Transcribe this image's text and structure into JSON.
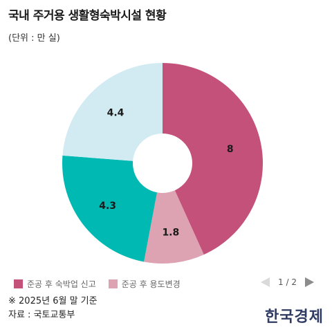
{
  "header": {
    "title": "국내 주거용 생활형숙박시설 현황",
    "unit": "(단위 : 만 실)"
  },
  "chart_data": {
    "type": "pie",
    "donut": true,
    "slices": [
      {
        "label": "준공 후 숙박업 신고",
        "value": 8,
        "color": "#c4517a"
      },
      {
        "label": "",
        "value": 1.8,
        "color": "#dea3b2"
      },
      {
        "label": "",
        "value": 4.3,
        "color": "#00b9b3"
      },
      {
        "label": "",
        "value": 4.4,
        "color": "#d2ebf2"
      }
    ],
    "legend": [
      {
        "label": "준공 후 숙박업 신고",
        "color": "#c4517a"
      },
      {
        "label": "준공 후 용도변경",
        "color": "#dea3b2"
      }
    ],
    "legend_position": "bottom-left"
  },
  "pager": {
    "text": "1 / 2"
  },
  "footer": {
    "note": "※ 2025년 6월 말 기준",
    "source": "자료 : 국토교통부",
    "logo_text": "한국경제"
  }
}
